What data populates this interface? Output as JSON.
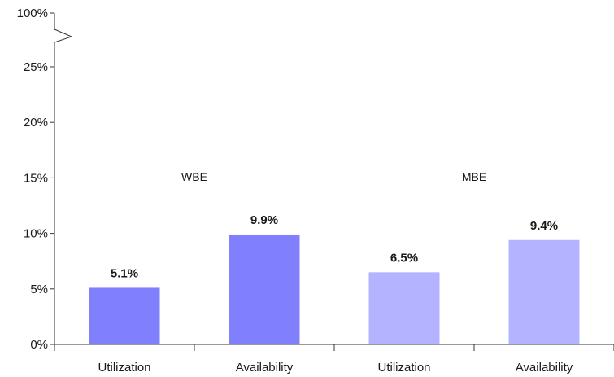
{
  "chart_data": {
    "type": "bar",
    "title": "",
    "xlabel": "",
    "ylabel": "",
    "ylim": [
      0,
      25
    ],
    "y_axis_break": {
      "above": 25,
      "top_label": "100%"
    },
    "yticks": [
      "0%",
      "5%",
      "10%",
      "15%",
      "20%",
      "25%"
    ],
    "ytick_values": [
      0,
      5,
      10,
      15,
      20,
      25
    ],
    "categories": [
      "Utilization",
      "Availability",
      "Utilization",
      "Availability"
    ],
    "groups": [
      {
        "name": "WBE",
        "color": "#8080ff"
      },
      {
        "name": "MBE",
        "color": "#b3b3ff"
      }
    ],
    "bars": [
      {
        "category": "Utilization",
        "group": "WBE",
        "value": 5.1,
        "label": "5.1%"
      },
      {
        "category": "Availability",
        "group": "WBE",
        "value": 9.9,
        "label": "9.9%"
      },
      {
        "category": "Utilization",
        "group": "MBE",
        "value": 6.5,
        "label": "6.5%"
      },
      {
        "category": "Availability",
        "group": "MBE",
        "value": 9.4,
        "label": "9.4%"
      }
    ],
    "grid": false,
    "legend": "none"
  }
}
